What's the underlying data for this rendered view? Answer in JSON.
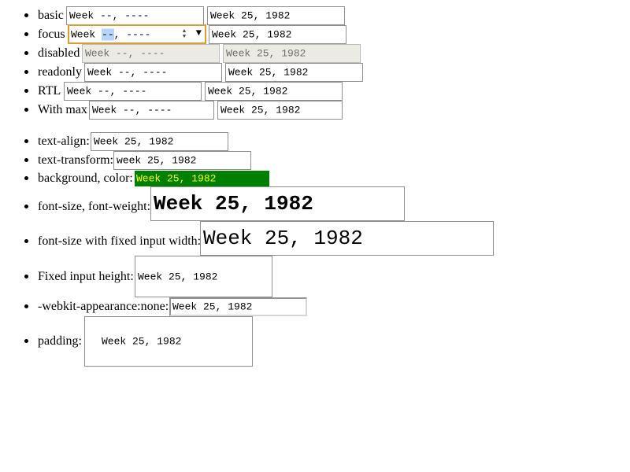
{
  "placeholder": "Week --, ----",
  "value": "Week 25, 1982",
  "value_lower": "week 25, 1982",
  "focus": {
    "prefix": "Week ",
    "selected": "--",
    "suffix": ", ----"
  },
  "rows": {
    "basic": "basic",
    "focus": "focus",
    "disabled": "disabled",
    "readonly": "readonly",
    "rtl": "RTL",
    "with_max": "With max",
    "text_align": "text-align:",
    "text_transform": "text-transform:",
    "background": "background, color:",
    "font_size_weight": "font-size, font-weight:",
    "font_size_fixed": "font-size with fixed input width:",
    "fixed_height": "Fixed input height:",
    "webkit": "-webkit-appearance:none:",
    "padding": "padding:"
  },
  "icons": {
    "spin_up": "▲",
    "spin_down": "▼",
    "dropdown": "▼"
  },
  "colors": {
    "focus_border": "#e09a33",
    "disabled_bg": "#ebebe4",
    "green_bg": "#008000",
    "yellow_text": "#ffff00",
    "selection": "#b4d5fe"
  }
}
